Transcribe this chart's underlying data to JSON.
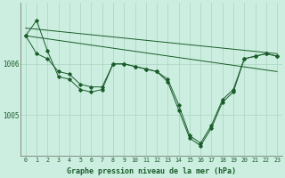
{
  "background_color": "#cceee0",
  "grid_color": "#aad4c0",
  "line_color": "#1a5c2a",
  "marker_color": "#1a5c2a",
  "xlabel": "Graphe pression niveau de la mer (hPa)",
  "xlabel_fontsize": 6.0,
  "ylabel_ticks": [
    1005,
    1006
  ],
  "xlim": [
    -0.5,
    23.5
  ],
  "ylim": [
    1004.2,
    1007.2
  ],
  "line1_x": [
    0,
    23
  ],
  "line1_y": [
    1006.7,
    1006.2
  ],
  "line2_x": [
    0,
    23
  ],
  "line2_y": [
    1006.55,
    1005.85
  ],
  "line3": {
    "x": [
      0,
      1,
      2,
      3,
      4,
      5,
      6,
      7,
      8,
      9,
      10,
      11,
      12,
      13,
      14,
      15,
      16,
      17,
      18,
      19,
      20,
      21,
      22,
      23
    ],
    "y": [
      1006.55,
      1006.85,
      1006.25,
      1005.75,
      1005.7,
      1005.5,
      1005.45,
      1005.5,
      1006.0,
      1006.0,
      1005.95,
      1005.9,
      1005.85,
      1005.65,
      1005.1,
      1004.55,
      1004.4,
      1004.75,
      1005.25,
      1005.45,
      1006.1,
      1006.15,
      1006.2,
      1006.15
    ]
  },
  "line4": {
    "x": [
      0,
      1,
      2,
      3,
      4,
      5,
      6,
      7,
      8,
      9,
      10,
      11,
      12,
      13,
      14,
      15,
      16,
      17,
      18,
      19,
      20,
      21,
      22,
      23
    ],
    "y": [
      1006.55,
      1006.2,
      1006.1,
      1005.85,
      1005.8,
      1005.6,
      1005.55,
      1005.55,
      1006.0,
      1006.0,
      1005.95,
      1005.9,
      1005.85,
      1005.7,
      1005.2,
      1004.6,
      1004.45,
      1004.8,
      1005.3,
      1005.5,
      1006.1,
      1006.15,
      1006.2,
      1006.15
    ]
  },
  "xtick_labels": [
    "0",
    "1",
    "2",
    "3",
    "4",
    "5",
    "6",
    "7",
    "8",
    "9",
    "10",
    "11",
    "12",
    "13",
    "14",
    "15",
    "16",
    "17",
    "18",
    "19",
    "20",
    "21",
    "22",
    "23"
  ],
  "xtick_fontsize": 4.8,
  "ytick_fontsize": 5.5,
  "figsize": [
    3.2,
    2.0
  ],
  "dpi": 100
}
